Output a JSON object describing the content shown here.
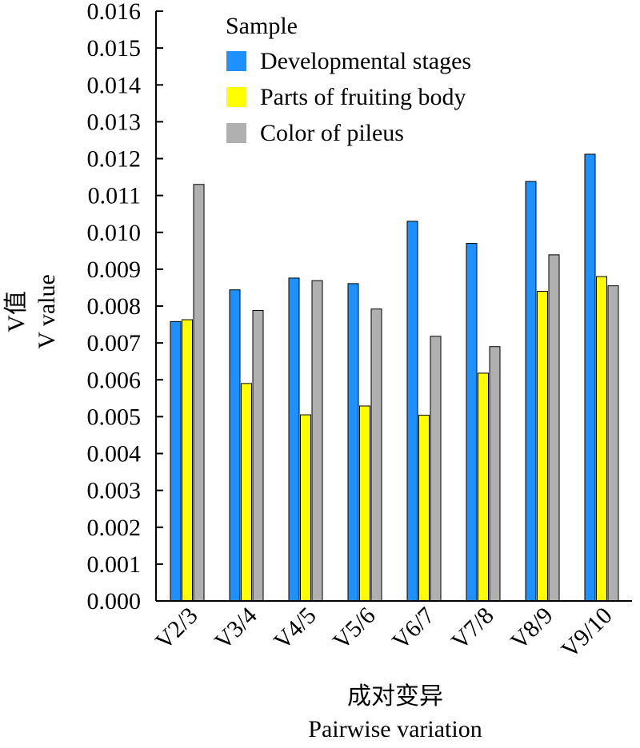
{
  "chart_data": {
    "type": "bar",
    "categories": [
      "V2/3",
      "V3/4",
      "V4/5",
      "V5/6",
      "V6/7",
      "V7/8",
      "V8/9",
      "V9/10"
    ],
    "series": [
      {
        "name": "Developmental stages",
        "color": "#1e90ff",
        "values": [
          0.00758,
          0.00844,
          0.00876,
          0.00861,
          0.0103,
          0.0097,
          0.01138,
          0.01212
        ]
      },
      {
        "name": "Parts of fruiting body",
        "color": "#ffff00",
        "values": [
          0.00763,
          0.0059,
          0.00505,
          0.00529,
          0.00504,
          0.00618,
          0.0084,
          0.0088
        ]
      },
      {
        "name": "Color of pileus",
        "color": "#b0b0b0",
        "values": [
          0.0113,
          0.00788,
          0.00869,
          0.00792,
          0.00718,
          0.0069,
          0.00939,
          0.00855
        ]
      }
    ],
    "legend_title": "Sample",
    "ylabel_cn": "V值",
    "ylabel": "V value",
    "xlabel_cn": "成对变异",
    "xlabel": "Pairwise variation",
    "ylim": [
      0,
      0.016
    ],
    "yticks": [
      "0.000",
      "0.001",
      "0.002",
      "0.003",
      "0.004",
      "0.005",
      "0.006",
      "0.007",
      "0.008",
      "0.009",
      "0.010",
      "0.011",
      "0.012",
      "0.013",
      "0.014",
      "0.015",
      "0.016"
    ],
    "legend_position": "top-left"
  }
}
